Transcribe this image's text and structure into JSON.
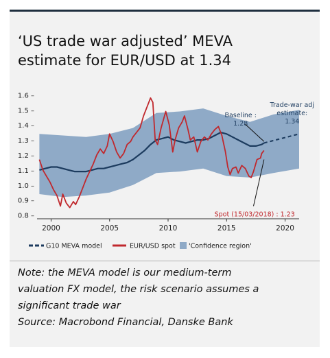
{
  "title_lines": [
    "‘US trade war adjusted’ MEVA",
    "estimate for EUR/USD at 1.34"
  ],
  "note_lines": [
    "Note: the MEVA model is our medium-term",
    "valuation FX model, the risk scenario assumes a",
    "significant trade war",
    "Source: Macrobond Financial, Danske Bank"
  ],
  "colors": {
    "meva": "#1c3b5e",
    "spot": "#c0282d",
    "confidence": "#8faac7",
    "background": "#f2f2f2"
  },
  "chart_data": {
    "type": "line",
    "xlim": [
      1998.8,
      2021.2
    ],
    "ylim": [
      0.78,
      1.62
    ],
    "x_ticks": [
      2000,
      2005,
      2010,
      2015,
      2020
    ],
    "y_ticks": [
      0.8,
      0.9,
      1.0,
      1.1,
      1.2,
      1.3,
      1.4,
      1.5,
      1.6
    ],
    "y_tick_labels": [
      "0.8 –",
      "0.9 –",
      "1.0 –",
      "1.1 –",
      "1.2 –",
      "1.3 –",
      "1.4 –",
      "1.5 –",
      "1.6 –"
    ],
    "legend": [
      "G10 MEVA model",
      "EUR/USD spot",
      "'Confidence region'"
    ],
    "legend_position": "bottom",
    "series": [
      {
        "name": "G10 MEVA model",
        "points": [
          [
            1999.0,
            1.1
          ],
          [
            1999.5,
            1.11
          ],
          [
            2000.0,
            1.12
          ],
          [
            2000.5,
            1.12
          ],
          [
            2001.0,
            1.11
          ],
          [
            2001.5,
            1.1
          ],
          [
            2002.0,
            1.09
          ],
          [
            2002.5,
            1.09
          ],
          [
            2003.0,
            1.09
          ],
          [
            2003.5,
            1.1
          ],
          [
            2004.0,
            1.11
          ],
          [
            2004.5,
            1.11
          ],
          [
            2005.0,
            1.12
          ],
          [
            2005.5,
            1.13
          ],
          [
            2006.0,
            1.14
          ],
          [
            2006.5,
            1.15
          ],
          [
            2007.0,
            1.17
          ],
          [
            2007.5,
            1.2
          ],
          [
            2008.0,
            1.23
          ],
          [
            2008.5,
            1.27
          ],
          [
            2009.0,
            1.3
          ],
          [
            2009.5,
            1.31
          ],
          [
            2010.0,
            1.32
          ],
          [
            2010.5,
            1.3
          ],
          [
            2011.0,
            1.29
          ],
          [
            2011.5,
            1.28
          ],
          [
            2012.0,
            1.29
          ],
          [
            2012.5,
            1.3
          ],
          [
            2013.0,
            1.3
          ],
          [
            2013.5,
            1.31
          ],
          [
            2014.0,
            1.33
          ],
          [
            2014.5,
            1.35
          ],
          [
            2015.0,
            1.34
          ],
          [
            2015.5,
            1.32
          ],
          [
            2016.0,
            1.3
          ],
          [
            2016.5,
            1.28
          ],
          [
            2017.0,
            1.26
          ],
          [
            2017.5,
            1.26
          ],
          [
            2018.0,
            1.27
          ],
          [
            2018.2,
            1.28
          ]
        ]
      },
      {
        "name": "Trade-war adj estimate",
        "style": "dashed",
        "points": [
          [
            2018.2,
            1.28
          ],
          [
            2021.2,
            1.34
          ]
        ]
      },
      {
        "name": "EUR/USD spot",
        "points": [
          [
            1999.0,
            1.17
          ],
          [
            1999.3,
            1.1
          ],
          [
            1999.6,
            1.06
          ],
          [
            1999.9,
            1.02
          ],
          [
            2000.2,
            0.97
          ],
          [
            2000.5,
            0.93
          ],
          [
            2000.8,
            0.86
          ],
          [
            2001.0,
            0.94
          ],
          [
            2001.3,
            0.88
          ],
          [
            2001.6,
            0.85
          ],
          [
            2001.9,
            0.89
          ],
          [
            2002.1,
            0.87
          ],
          [
            2002.4,
            0.92
          ],
          [
            2002.7,
            0.98
          ],
          [
            2003.0,
            1.04
          ],
          [
            2003.3,
            1.09
          ],
          [
            2003.6,
            1.14
          ],
          [
            2003.9,
            1.2
          ],
          [
            2004.2,
            1.24
          ],
          [
            2004.5,
            1.21
          ],
          [
            2004.8,
            1.26
          ],
          [
            2005.0,
            1.34
          ],
          [
            2005.3,
            1.29
          ],
          [
            2005.6,
            1.22
          ],
          [
            2005.9,
            1.18
          ],
          [
            2006.2,
            1.21
          ],
          [
            2006.5,
            1.27
          ],
          [
            2006.8,
            1.29
          ],
          [
            2007.0,
            1.32
          ],
          [
            2007.3,
            1.35
          ],
          [
            2007.6,
            1.38
          ],
          [
            2007.9,
            1.46
          ],
          [
            2008.2,
            1.52
          ],
          [
            2008.5,
            1.58
          ],
          [
            2008.7,
            1.55
          ],
          [
            2008.9,
            1.3
          ],
          [
            2009.1,
            1.27
          ],
          [
            2009.4,
            1.38
          ],
          [
            2009.8,
            1.49
          ],
          [
            2010.1,
            1.4
          ],
          [
            2010.4,
            1.22
          ],
          [
            2010.6,
            1.3
          ],
          [
            2010.9,
            1.38
          ],
          [
            2011.2,
            1.42
          ],
          [
            2011.4,
            1.46
          ],
          [
            2011.7,
            1.37
          ],
          [
            2011.9,
            1.3
          ],
          [
            2012.2,
            1.32
          ],
          [
            2012.5,
            1.22
          ],
          [
            2012.8,
            1.29
          ],
          [
            2013.1,
            1.32
          ],
          [
            2013.4,
            1.3
          ],
          [
            2013.7,
            1.34
          ],
          [
            2014.0,
            1.37
          ],
          [
            2014.3,
            1.39
          ],
          [
            2014.6,
            1.33
          ],
          [
            2014.9,
            1.22
          ],
          [
            2015.1,
            1.12
          ],
          [
            2015.3,
            1.07
          ],
          [
            2015.5,
            1.11
          ],
          [
            2015.8,
            1.12
          ],
          [
            2016.0,
            1.08
          ],
          [
            2016.3,
            1.13
          ],
          [
            2016.6,
            1.11
          ],
          [
            2016.9,
            1.06
          ],
          [
            2017.1,
            1.05
          ],
          [
            2017.3,
            1.09
          ],
          [
            2017.6,
            1.17
          ],
          [
            2017.9,
            1.18
          ],
          [
            2018.0,
            1.21
          ],
          [
            2018.2,
            1.23
          ]
        ]
      },
      {
        "name": "'Confidence region'",
        "type": "band",
        "points": [
          [
            1999.0,
            0.94,
            1.34
          ],
          [
            2001.0,
            0.92,
            1.33
          ],
          [
            2003.0,
            0.93,
            1.32
          ],
          [
            2005.0,
            0.95,
            1.34
          ],
          [
            2007.0,
            1.0,
            1.38
          ],
          [
            2009.0,
            1.08,
            1.48
          ],
          [
            2011.0,
            1.09,
            1.49
          ],
          [
            2013.0,
            1.11,
            1.51
          ],
          [
            2015.0,
            1.06,
            1.46
          ],
          [
            2017.0,
            1.05,
            1.42
          ],
          [
            2019.0,
            1.08,
            1.47
          ],
          [
            2021.2,
            1.11,
            1.5
          ]
        ]
      }
    ],
    "annotations": [
      {
        "lines": [
          "Baseline :",
          "1.28"
        ],
        "x": 2016.2,
        "y": 1.45
      },
      {
        "lines": [
          "Trade-war adj",
          "estimate:",
          "1.34"
        ],
        "x": 2020.6,
        "y": 1.52
      },
      {
        "lines": [
          "Spot (15/03/2018) : 1.23"
        ],
        "x": 2017.4,
        "y": 0.81
      }
    ]
  }
}
